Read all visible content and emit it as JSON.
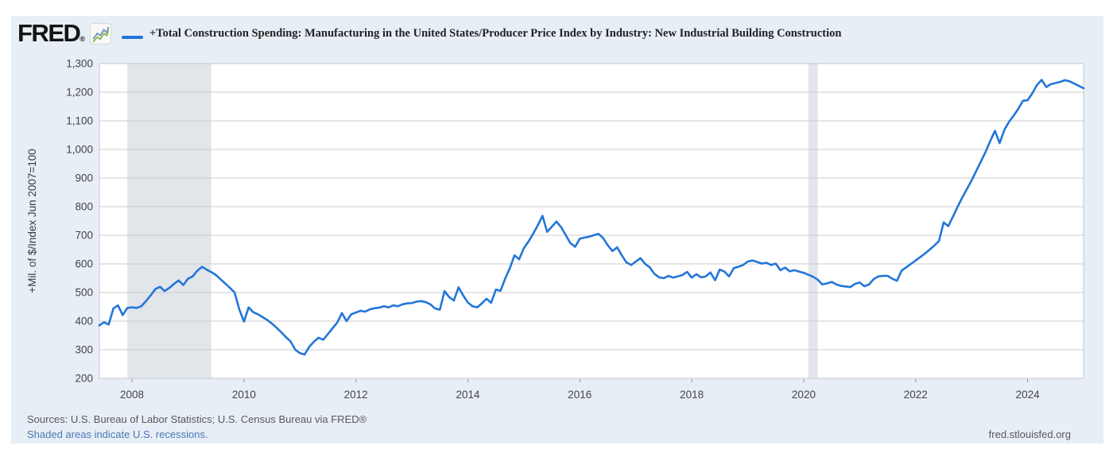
{
  "branding": {
    "logo_text": "FRED",
    "registered_mark": "®",
    "logo_icon": "sparkline-chart-icon"
  },
  "legend": {
    "series_label": "+Total Construction Spending: Manufacturing in the United States/Producer Price Index by Industry: New Industrial Building Construction",
    "series_color": "#2276d9"
  },
  "footer": {
    "sources": "Sources: U.S. Bureau of Labor Statistics; U.S. Census Bureau via FRED®",
    "recession_note": "Shaded areas indicate U.S. recessions.",
    "site_url": "fred.stlouisfed.org"
  },
  "colors": {
    "background": "#e7eef6",
    "plot_background": "#ffffff",
    "grid": "#cccccc",
    "plot_border": "#c3c8ce",
    "recession_shading": "#e2e5ea",
    "axis_text": "#444444",
    "series_line": "#2276d9",
    "tick": "#999999",
    "icon_green": "#8ab84a",
    "icon_blue": "#6f94bd"
  },
  "chart_data": {
    "type": "line",
    "title": "+Total Construction Spending: Manufacturing in the United States/Producer Price Index by Industry: New Industrial Building Construction",
    "xlabel": "",
    "ylabel": "+Mil. of $/Index Jun 2007=100",
    "grid": true,
    "legend_position": "top",
    "xlim": [
      2007.417,
      2025.0
    ],
    "ylim": [
      200,
      1300
    ],
    "x_ticks": [
      {
        "value": 2008,
        "label": "2008"
      },
      {
        "value": 2010,
        "label": "2010"
      },
      {
        "value": 2012,
        "label": "2012"
      },
      {
        "value": 2014,
        "label": "2014"
      },
      {
        "value": 2016,
        "label": "2016"
      },
      {
        "value": 2018,
        "label": "2018"
      },
      {
        "value": 2020,
        "label": "2020"
      },
      {
        "value": 2022,
        "label": "2022"
      },
      {
        "value": 2024,
        "label": "2024"
      }
    ],
    "y_ticks": [
      {
        "value": 1300,
        "label": "1,300"
      },
      {
        "value": 1200,
        "label": "1,200"
      },
      {
        "value": 1100,
        "label": "1,100"
      },
      {
        "value": 1000,
        "label": "1,000"
      },
      {
        "value": 900,
        "label": "900"
      },
      {
        "value": 800,
        "label": "800"
      },
      {
        "value": 700,
        "label": "700"
      },
      {
        "value": 600,
        "label": "600"
      },
      {
        "value": 500,
        "label": "500"
      },
      {
        "value": 400,
        "label": "400"
      },
      {
        "value": 300,
        "label": "300"
      },
      {
        "value": 200,
        "label": "200"
      }
    ],
    "recessions": [
      {
        "start": 2007.917,
        "end": 2009.417
      },
      {
        "start": 2020.083,
        "end": 2020.25
      }
    ],
    "series": [
      {
        "name": "+Total Construction Spending: Manufacturing in the United States/Producer Price Index by Industry: New Industrial Building Construction",
        "color": "#2276d9",
        "frequency": "monthly",
        "start_year": 2007,
        "start_month": 6,
        "values": [
          385,
          396,
          388,
          444,
          455,
          421,
          446,
          448,
          446,
          452,
          470,
          490,
          512,
          520,
          505,
          516,
          530,
          542,
          526,
          548,
          556,
          576,
          590,
          580,
          571,
          561,
          546,
          531,
          516,
          500,
          441,
          398,
          448,
          431,
          424,
          414,
          404,
          391,
          377,
          361,
          344,
          329,
          300,
          288,
          283,
          310,
          328,
          342,
          335,
          355,
          375,
          395,
          428,
          400,
          424,
          430,
          436,
          433,
          441,
          445,
          447,
          452,
          448,
          455,
          452,
          459,
          462,
          463,
          468,
          470,
          466,
          458,
          444,
          440,
          505,
          484,
          472,
          518,
          490,
          465,
          452,
          448,
          462,
          478,
          464,
          510,
          506,
          548,
          585,
          630,
          616,
          655,
          678,
          705,
          735,
          768,
          712,
          730,
          748,
          728,
          700,
          672,
          660,
          688,
          692,
          695,
          700,
          705,
          690,
          665,
          645,
          658,
          630,
          605,
          596,
          608,
          620,
          600,
          588,
          565,
          553,
          550,
          558,
          552,
          556,
          561,
          572,
          552,
          564,
          553,
          556,
          570,
          543,
          580,
          573,
          556,
          585,
          590,
          596,
          608,
          612,
          607,
          601,
          604,
          596,
          601,
          578,
          587,
          574,
          578,
          573,
          569,
          562,
          555,
          545,
          528,
          532,
          537,
          528,
          523,
          521,
          519,
          530,
          535,
          522,
          528,
          547,
          556,
          558,
          558,
          548,
          541,
          577,
          588,
          600,
          612,
          624,
          636,
          650,
          664,
          680,
          745,
          732,
          765,
          800,
          832,
          862,
          892,
          925,
          958,
          992,
          1030,
          1065,
          1022,
          1068,
          1096,
          1118,
          1142,
          1170,
          1172,
          1196,
          1225,
          1243,
          1218,
          1228,
          1232,
          1236,
          1242,
          1238,
          1230,
          1222,
          1214
        ]
      }
    ]
  }
}
